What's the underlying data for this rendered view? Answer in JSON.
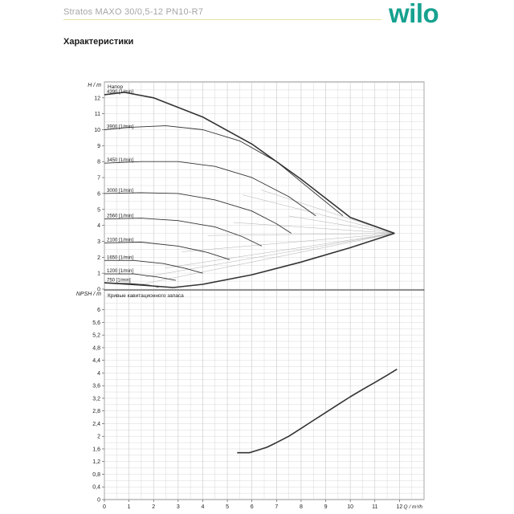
{
  "header": {
    "product_title": "Stratos MAXO 30/0,5-12 PN10-R7",
    "logo_text": "wilo",
    "section_title": "Характеристики"
  },
  "colors": {
    "logo": "#16a18f",
    "grid": "#c8c8c8",
    "curve": "#333333",
    "aux_curve": "#b0b0b0"
  },
  "chart_data": [
    {
      "type": "line",
      "title": "Напор",
      "ylabel": "H / m",
      "xlim": [
        0,
        13
      ],
      "ylim": [
        0,
        13
      ],
      "x_ticks": [
        0,
        1,
        2,
        3,
        4,
        5,
        6,
        7,
        8,
        9,
        10,
        11,
        12
      ],
      "y_ticks": [
        0,
        1,
        2,
        3,
        4,
        5,
        6,
        7,
        8,
        9,
        10,
        11,
        12
      ],
      "grid": true,
      "series": [
        {
          "name": "4390 [1/min]",
          "x": [
            0,
            0.8,
            2,
            4,
            6,
            8,
            10,
            11.8
          ],
          "y": [
            12.2,
            12.35,
            12.0,
            10.8,
            9.1,
            6.9,
            4.5,
            3.5
          ]
        },
        {
          "name": "3900 [1/min]",
          "x": [
            0,
            1,
            2.5,
            4,
            5.5,
            7,
            8.5,
            9.7
          ],
          "y": [
            10.0,
            10.15,
            10.25,
            10.0,
            9.3,
            8.0,
            6.1,
            4.6
          ]
        },
        {
          "name": "3450 [1/min]",
          "x": [
            0,
            1.5,
            3,
            4.5,
            6,
            7.5,
            8.6
          ],
          "y": [
            7.9,
            8.0,
            8.0,
            7.7,
            7.0,
            5.8,
            4.6
          ]
        },
        {
          "name": "3000 [1/min]",
          "x": [
            0,
            1.5,
            3,
            4.5,
            6,
            7,
            7.6
          ],
          "y": [
            6.0,
            6.05,
            6.0,
            5.6,
            4.9,
            4.1,
            3.5
          ]
        },
        {
          "name": "2560 [1/min]",
          "x": [
            0,
            1.5,
            3,
            4.5,
            5.6,
            6.4
          ],
          "y": [
            4.4,
            4.45,
            4.3,
            3.9,
            3.3,
            2.7
          ]
        },
        {
          "name": "2100 [1/min]",
          "x": [
            0,
            1.5,
            3,
            4.2,
            5.1
          ],
          "y": [
            2.9,
            2.95,
            2.7,
            2.3,
            1.85
          ]
        },
        {
          "name": "1650 [1/min]",
          "x": [
            0,
            1.2,
            2.4,
            3.3,
            4.0
          ],
          "y": [
            1.8,
            1.8,
            1.6,
            1.3,
            1.0
          ]
        },
        {
          "name": "1200 [1/min]",
          "x": [
            0,
            1.2,
            2.2,
            2.9
          ],
          "y": [
            0.95,
            0.95,
            0.75,
            0.55
          ]
        },
        {
          "name": "750 [1/min]",
          "x": [
            0,
            1,
            1.8,
            2.2
          ],
          "y": [
            0.38,
            0.36,
            0.25,
            0.12
          ]
        },
        {
          "name": "",
          "x": [
            0,
            1.5,
            2.8,
            4,
            6,
            8,
            10,
            11.8
          ],
          "y": [
            0.4,
            0.25,
            0.1,
            0.3,
            0.9,
            1.7,
            2.6,
            3.5
          ]
        }
      ]
    },
    {
      "type": "line",
      "title": "Кривые кавитационного запаса",
      "ylabel": "NPSH / m",
      "xlabel": "Q / m³/h",
      "xlim": [
        0,
        13
      ],
      "ylim": [
        0,
        6.6
      ],
      "x_ticks": [
        0,
        1,
        2,
        3,
        4,
        5,
        6,
        7,
        8,
        9,
        10,
        11,
        12
      ],
      "y_ticks": [
        0,
        0.4,
        0.8,
        1.2,
        1.6,
        2,
        2.4,
        2.8,
        3.2,
        3.6,
        4,
        4.4,
        4.8,
        5.2,
        5.6,
        6
      ],
      "grid": true,
      "series": [
        {
          "name": "",
          "x": [
            5.4,
            5.9,
            6.2,
            6.6,
            7,
            7.5,
            8,
            8.5,
            9,
            9.5,
            10,
            10.5,
            11,
            11.5,
            11.9
          ],
          "y": [
            1.48,
            1.48,
            1.55,
            1.65,
            1.8,
            2.0,
            2.25,
            2.5,
            2.75,
            3.0,
            3.25,
            3.48,
            3.7,
            3.93,
            4.12
          ]
        }
      ]
    }
  ],
  "unit_labels": {
    "top_chart_x_label": "",
    "bottom_chart_x_label": "Q / m³/h"
  }
}
